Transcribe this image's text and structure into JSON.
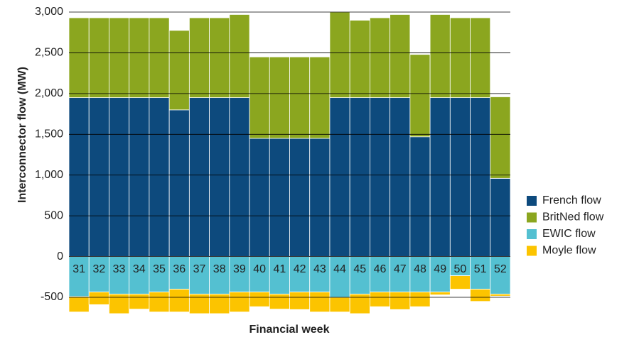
{
  "chart_data": {
    "type": "bar",
    "stacked": true,
    "y_label": "Interconnector flow (MW)",
    "x_label": "Financial week",
    "categories": [
      "31",
      "32",
      "33",
      "34",
      "35",
      "36",
      "37",
      "38",
      "39",
      "40",
      "41",
      "42",
      "43",
      "44",
      "45",
      "46",
      "47",
      "48",
      "49",
      "50",
      "51",
      "52"
    ],
    "series": [
      {
        "name": "French flow",
        "color": "#0d4a7d",
        "values": [
          1950,
          1950,
          1950,
          1950,
          1950,
          1800,
          1950,
          1950,
          1950,
          1450,
          1450,
          1450,
          1450,
          1950,
          1950,
          1950,
          1950,
          1470,
          1950,
          1950,
          1950,
          960
        ]
      },
      {
        "name": "BritNed flow",
        "color": "#8ba61f",
        "values": [
          980,
          980,
          980,
          980,
          980,
          975,
          980,
          980,
          1020,
          1000,
          1000,
          1000,
          1000,
          1050,
          950,
          980,
          1020,
          1010,
          1020,
          980,
          980,
          1000
        ]
      },
      {
        "name": "EWIC flow",
        "color": "#54c0d1",
        "values": [
          -490,
          -435,
          -460,
          -460,
          -435,
          -400,
          -460,
          -460,
          -435,
          -435,
          -460,
          -435,
          -435,
          -500,
          -460,
          -435,
          -435,
          -435,
          -435,
          -235,
          -400,
          -460
        ]
      },
      {
        "name": "Moyle flow",
        "color": "#fcc400",
        "values": [
          -190,
          -155,
          -240,
          -185,
          -245,
          -280,
          -240,
          -240,
          -245,
          -180,
          -185,
          -215,
          -245,
          -180,
          -240,
          -180,
          -215,
          -180,
          -35,
          -165,
          -150,
          -25
        ]
      }
    ],
    "ylim": [
      -700,
      3000
    ],
    "yticks": [
      {
        "value": -500,
        "label": "-500"
      },
      0,
      500,
      {
        "value": 1000,
        "label": "1,000"
      },
      {
        "value": 1500,
        "label": "1,500"
      },
      {
        "value": 2000,
        "label": "2,000"
      },
      {
        "value": 2500,
        "label": "2,500"
      },
      {
        "value": 3000,
        "label": "3,000"
      }
    ],
    "grid": true,
    "legend": "right"
  }
}
